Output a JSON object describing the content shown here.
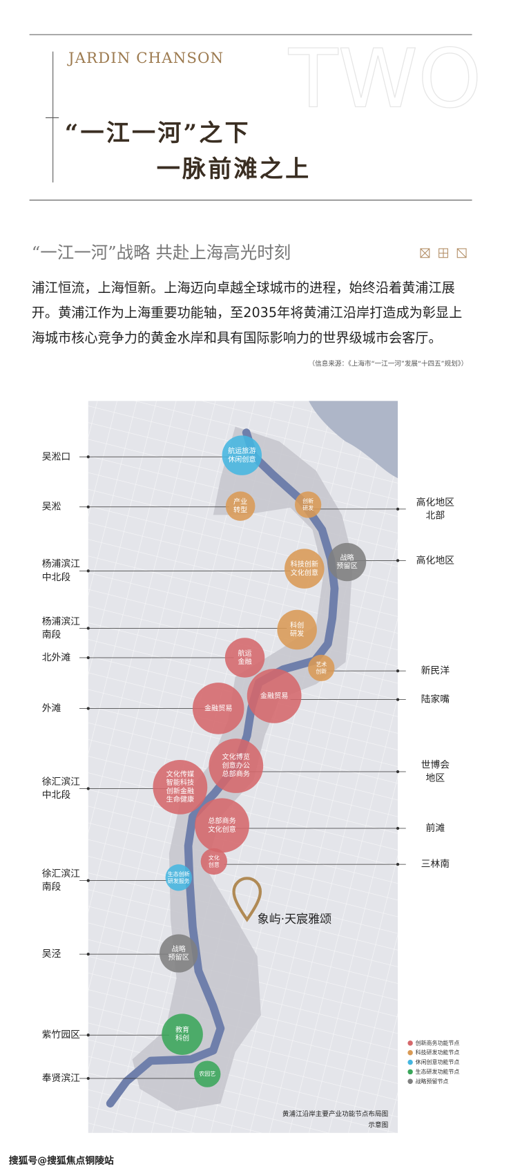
{
  "header": {
    "brand": "JARDIN CHANSON",
    "number": "TWO",
    "title_lines": [
      "“一江一河”之下",
      "一脉前滩之上"
    ]
  },
  "section": {
    "heading": "“一江一河”战略  共赴上海高光时刻",
    "paragraph_lines": [
      "浦江恒流，上海恒新。上海迈向卓越全球城市的进程，始终沿着黄浦江展",
      "开。黄浦江作为上海重要功能轴，至2035年将黄浦江沿岸打造成为彰显上",
      "海城市核心竞争力的黄金水岸和具有国际影响力的世界级城市会客厅。"
    ],
    "source": "（信息来源：《上海市“一江一河”发展“十四五”规划》）"
  },
  "map": {
    "left_labels": [
      {
        "lines": [
          "吴淞口"
        ]
      },
      {
        "lines": [
          "吴淞"
        ]
      },
      {
        "lines": [
          "杨浦滨江",
          "中北段"
        ]
      },
      {
        "lines": [
          "杨浦滨江",
          "南段"
        ]
      },
      {
        "lines": [
          "北外滩"
        ]
      },
      {
        "lines": [
          "外滩"
        ]
      },
      {
        "lines": [
          "徐汇滨江",
          "中北段"
        ]
      },
      {
        "lines": [
          "徐汇滨江",
          "南段"
        ]
      },
      {
        "lines": [
          "吴泾"
        ]
      },
      {
        "lines": [
          "紫竹园区"
        ]
      },
      {
        "lines": [
          "奉贤滨江"
        ]
      }
    ],
    "right_labels": [
      {
        "lines": [
          "高化地区",
          "北部"
        ]
      },
      {
        "lines": [
          "高化地区"
        ]
      },
      {
        "lines": [
          "新民洋"
        ]
      },
      {
        "lines": [
          "陆家嘴"
        ]
      },
      {
        "lines": [
          "世博会",
          "地区"
        ]
      },
      {
        "lines": [
          "前滩"
        ]
      },
      {
        "lines": [
          "三林南"
        ]
      }
    ],
    "nodes": [
      {
        "lines": [
          "航运旅游",
          "休闲创意"
        ],
        "color": "#45b6e0"
      },
      {
        "lines": [
          "产业",
          "转型"
        ],
        "color": "#d99a55"
      },
      {
        "lines": [
          "创新",
          "研发"
        ],
        "color": "#d99a55"
      },
      {
        "lines": [
          "科技创新",
          "文化创意"
        ],
        "color": "#d99a55"
      },
      {
        "lines": [
          "战略",
          "预留区"
        ],
        "color": "#7f7f7f"
      },
      {
        "lines": [
          "科创",
          "研发"
        ],
        "color": "#d99a55"
      },
      {
        "lines": [
          "航运",
          "金融"
        ],
        "color": "#d5686b"
      },
      {
        "lines": [
          "艺术",
          "创新"
        ],
        "color": "#d99a55"
      },
      {
        "lines": [
          "金融贸易"
        ],
        "color": "#d5686b"
      },
      {
        "lines": [
          "金融贸易"
        ],
        "color": "#d5686b"
      },
      {
        "lines": [
          "文化博览",
          "创意办公",
          "总部商务"
        ],
        "color": "#d5686b"
      },
      {
        "lines": [
          "文化传媒",
          "智能科技",
          "创新金融",
          "生命健康"
        ],
        "color": "#d5686b"
      },
      {
        "lines": [
          "总部商务",
          "文化创意"
        ],
        "color": "#d5686b"
      },
      {
        "lines": [
          "文化",
          "创意"
        ],
        "color": "#d5686b"
      },
      {
        "lines": [
          "生态创新",
          "研发服务"
        ],
        "color": "#45b6e0"
      },
      {
        "lines": [
          "战略",
          "预留区"
        ],
        "color": "#7f7f7f"
      },
      {
        "lines": [
          "教育",
          "科创"
        ],
        "color": "#3aa65a"
      },
      {
        "lines": [
          "农园艺"
        ],
        "color": "#3aa65a"
      }
    ],
    "location": "象屿·天宸雅颂",
    "legend": [
      {
        "label": "创新商务功能节点",
        "color": "#d5686b"
      },
      {
        "label": "科技研发功能节点",
        "color": "#d99a55"
      },
      {
        "label": "休闲创意功能节点",
        "color": "#45b6e0"
      },
      {
        "label": "生态研发功能节点",
        "color": "#3aa65a"
      },
      {
        "label": "战略预留节点",
        "color": "#7f7f7f"
      }
    ],
    "caption_lines": [
      "黄浦江沿岸主要产业功能节点布局图",
      "示意图"
    ]
  },
  "watermark": "搜狐号@搜狐焦点铜陵站"
}
